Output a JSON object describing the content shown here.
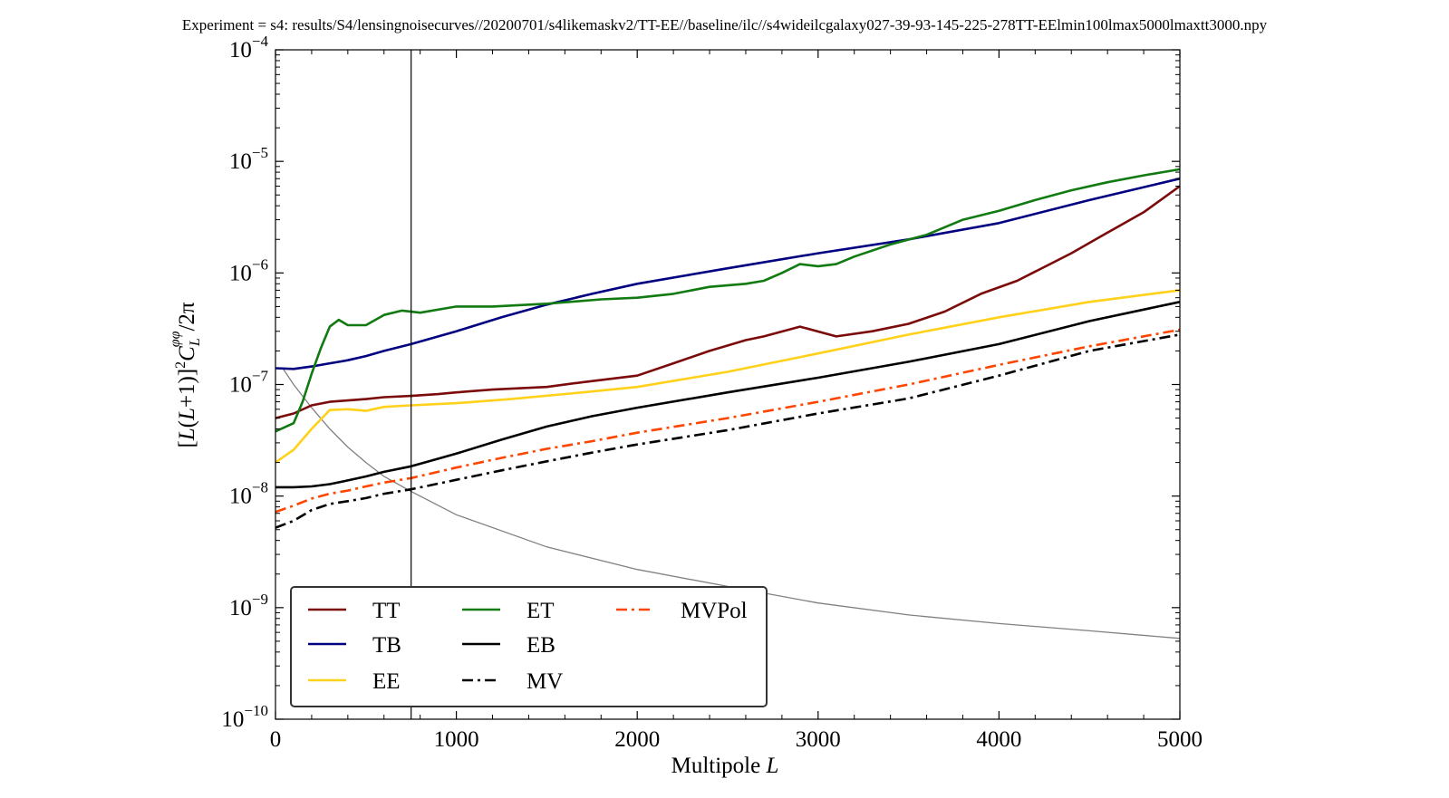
{
  "figure_title": "Experiment = s4: results/S4/lensingnoisecurves//20200701/s4likemaskv2/TT-EE//baseline/ilc//s4wideilcgalaxy027-39-93-145-225-278TT-EElmin100lmax5000lmaxtt3000.npy",
  "chart_data": {
    "type": "line",
    "title": "Experiment = s4: results/S4/lensingnoisecurves//20200701/s4likemaskv2/TT-EE//baseline/ilc//s4wideilcgalaxy027-39-93-145-225-278TT-EElmin100lmax5000lmaxtt3000.npy",
    "xlabel": "Multipole L",
    "ylabel": "[L(L+1)]²C_L^φφ/2π",
    "ylabel_parts": {
      "open": "[",
      "L1": "L",
      "mid": "(",
      "L2": "L",
      "plus": "+1)]",
      "sq": "2",
      "C": "C",
      "sub": "L",
      "sup": "φφ",
      "tail": "/2π"
    },
    "xlabel_parts": {
      "text": "Multipole ",
      "var": "L"
    },
    "xlim": [
      0,
      5000
    ],
    "ylim": [
      1e-10,
      0.0001
    ],
    "yscale": "log",
    "x_ticks": [
      0,
      1000,
      2000,
      3000,
      4000,
      5000
    ],
    "x_tick_labels": [
      "0",
      "1000",
      "2000",
      "3000",
      "4000",
      "5000"
    ],
    "y_ticks": [
      1e-10,
      1e-09,
      1e-08,
      1e-07,
      1e-06,
      1e-05,
      0.0001
    ],
    "y_tick_labels": [
      {
        "base": "10",
        "exp": "−10"
      },
      {
        "base": "10",
        "exp": "−9"
      },
      {
        "base": "10",
        "exp": "−8"
      },
      {
        "base": "10",
        "exp": "−7"
      },
      {
        "base": "10",
        "exp": "−6"
      },
      {
        "base": "10",
        "exp": "−5"
      },
      {
        "base": "10",
        "exp": "−4"
      }
    ],
    "grid": false,
    "legend_position": "lower-left",
    "vertical_line_x": 750,
    "reference_curve": {
      "color": "#808080",
      "x": [
        40,
        100,
        200,
        300,
        400,
        500,
        600,
        750,
        1000,
        1500,
        2000,
        2500,
        3000,
        3500,
        4000,
        4500,
        5000
      ],
      "y": [
        1.4e-07,
        1e-07,
        6.2e-08,
        4e-08,
        2.75e-08,
        2e-08,
        1.5e-08,
        1.1e-08,
        6.8e-09,
        3.5e-09,
        2.2e-09,
        1.55e-09,
        1.1e-09,
        8.6e-10,
        7.2e-10,
        6.2e-10,
        5.3e-10
      ]
    },
    "series": [
      {
        "name": "TT",
        "color": "#7b0a0a",
        "dash": "solid",
        "x": [
          0,
          100,
          200,
          300,
          400,
          500,
          600,
          750,
          900,
          1000,
          1200,
          1500,
          1700,
          2000,
          2200,
          2400,
          2600,
          2700,
          2900,
          3100,
          3300,
          3500,
          3700,
          3900,
          4100,
          4400,
          4600,
          4800,
          5000
        ],
        "y": [
          5e-08,
          5.5e-08,
          6.5e-08,
          7e-08,
          7.2e-08,
          7.4e-08,
          7.7e-08,
          7.9e-08,
          8.2e-08,
          8.5e-08,
          9e-08,
          9.5e-08,
          1.05e-07,
          1.2e-07,
          1.55e-07,
          2e-07,
          2.5e-07,
          2.7e-07,
          3.3e-07,
          2.7e-07,
          3e-07,
          3.5e-07,
          4.5e-07,
          6.5e-07,
          8.5e-07,
          1.5e-06,
          2.3e-06,
          3.5e-06,
          6e-06
        ]
      },
      {
        "name": "TB",
        "color": "#000080",
        "dash": "solid",
        "x": [
          0,
          100,
          200,
          300,
          400,
          500,
          600,
          750,
          1000,
          1250,
          1500,
          1750,
          2000,
          2500,
          3000,
          3500,
          4000,
          4500,
          5000
        ],
        "y": [
          1.4e-07,
          1.38e-07,
          1.45e-07,
          1.55e-07,
          1.65e-07,
          1.8e-07,
          2e-07,
          2.3e-07,
          3e-07,
          4e-07,
          5.2e-07,
          6.5e-07,
          8e-07,
          1.1e-06,
          1.5e-06,
          2e-06,
          2.8e-06,
          4.5e-06,
          7e-06
        ]
      },
      {
        "name": "EE",
        "color": "#ffd11a",
        "dash": "solid",
        "x": [
          0,
          100,
          200,
          300,
          400,
          500,
          600,
          750,
          1000,
          1300,
          1700,
          2000,
          2500,
          3000,
          3500,
          4000,
          4500,
          5000
        ],
        "y": [
          2e-08,
          2.6e-08,
          4e-08,
          5.9e-08,
          6e-08,
          5.8e-08,
          6.3e-08,
          6.5e-08,
          6.8e-08,
          7.4e-08,
          8.5e-08,
          9.5e-08,
          1.3e-07,
          1.9e-07,
          2.8e-07,
          4e-07,
          5.5e-07,
          7e-07
        ]
      },
      {
        "name": "ET",
        "color": "#117a11",
        "dash": "solid",
        "x": [
          0,
          100,
          150,
          200,
          250,
          300,
          350,
          400,
          500,
          600,
          700,
          800,
          1000,
          1200,
          1500,
          1800,
          2000,
          2200,
          2400,
          2600,
          2700,
          2800,
          2900,
          3000,
          3100,
          3200,
          3400,
          3600,
          3800,
          4000,
          4200,
          4400,
          4600,
          4800,
          5000
        ],
        "y": [
          3.8e-08,
          4.5e-08,
          7e-08,
          1.25e-07,
          2.1e-07,
          3.3e-07,
          3.8e-07,
          3.4e-07,
          3.4e-07,
          4.2e-07,
          4.6e-07,
          4.4e-07,
          5e-07,
          5e-07,
          5.3e-07,
          5.8e-07,
          6e-07,
          6.5e-07,
          7.5e-07,
          8e-07,
          8.5e-07,
          1e-06,
          1.2e-06,
          1.15e-06,
          1.2e-06,
          1.4e-06,
          1.8e-06,
          2.2e-06,
          3e-06,
          3.6e-06,
          4.5e-06,
          5.5e-06,
          6.5e-06,
          7.5e-06,
          8.5e-06
        ]
      },
      {
        "name": "EB",
        "color": "#000000",
        "dash": "solid",
        "x": [
          0,
          100,
          200,
          300,
          400,
          500,
          600,
          750,
          1000,
          1250,
          1500,
          1750,
          2000,
          2500,
          3000,
          3500,
          4000,
          4500,
          5000
        ],
        "y": [
          1.2e-08,
          1.2e-08,
          1.22e-08,
          1.28e-08,
          1.38e-08,
          1.5e-08,
          1.65e-08,
          1.85e-08,
          2.4e-08,
          3.2e-08,
          4.2e-08,
          5.2e-08,
          6.2e-08,
          8.5e-08,
          1.15e-07,
          1.6e-07,
          2.3e-07,
          3.7e-07,
          5.5e-07
        ]
      },
      {
        "name": "MV",
        "color": "#000000",
        "dash": "dashdot",
        "x": [
          0,
          100,
          200,
          300,
          400,
          500,
          600,
          750,
          1000,
          1250,
          1500,
          1750,
          2000,
          2500,
          3000,
          3500,
          4000,
          4500,
          5000
        ],
        "y": [
          5.2e-09,
          6e-09,
          7.5e-09,
          8.5e-09,
          9e-09,
          9.6e-09,
          1.05e-08,
          1.15e-08,
          1.4e-08,
          1.7e-08,
          2.05e-08,
          2.45e-08,
          2.9e-08,
          3.9e-08,
          5.5e-08,
          7.5e-08,
          1.2e-07,
          2e-07,
          2.8e-07
        ]
      },
      {
        "name": "MVPol",
        "color": "#ff4500",
        "dash": "dashdot",
        "x": [
          0,
          100,
          200,
          300,
          400,
          500,
          600,
          750,
          1000,
          1250,
          1500,
          1750,
          2000,
          2500,
          3000,
          3500,
          4000,
          4500,
          5000
        ],
        "y": [
          7.2e-09,
          8.2e-09,
          9.5e-09,
          1.05e-08,
          1.12e-08,
          1.22e-08,
          1.32e-08,
          1.45e-08,
          1.8e-08,
          2.2e-08,
          2.65e-08,
          3.1e-08,
          3.7e-08,
          5e-08,
          7e-08,
          1e-07,
          1.5e-07,
          2.2e-07,
          3.1e-07
        ]
      }
    ]
  }
}
